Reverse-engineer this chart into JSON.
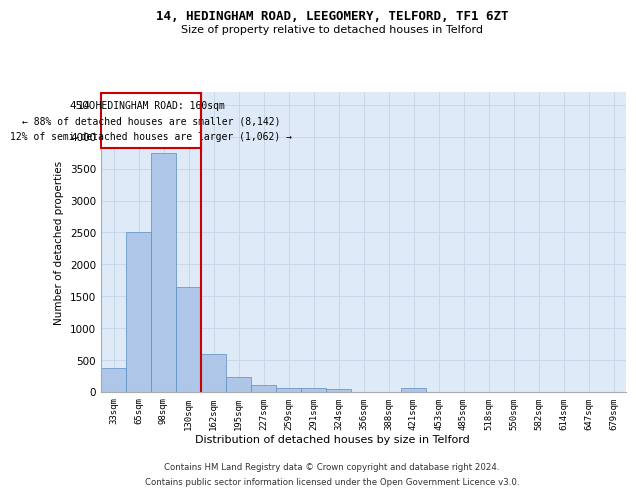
{
  "title_line1": "14, HEDINGHAM ROAD, LEEGOMERY, TELFORD, TF1 6ZT",
  "title_line2": "Size of property relative to detached houses in Telford",
  "xlabel": "Distribution of detached houses by size in Telford",
  "ylabel": "Number of detached properties",
  "footer_line1": "Contains HM Land Registry data © Crown copyright and database right 2024.",
  "footer_line2": "Contains public sector information licensed under the Open Government Licence v3.0.",
  "categories": [
    "33sqm",
    "65sqm",
    "98sqm",
    "130sqm",
    "162sqm",
    "195sqm",
    "227sqm",
    "259sqm",
    "291sqm",
    "324sqm",
    "356sqm",
    "388sqm",
    "421sqm",
    "453sqm",
    "485sqm",
    "518sqm",
    "550sqm",
    "582sqm",
    "614sqm",
    "647sqm",
    "679sqm"
  ],
  "values": [
    380,
    2500,
    3750,
    1650,
    600,
    230,
    105,
    60,
    55,
    45,
    0,
    0,
    55,
    0,
    0,
    0,
    0,
    0,
    0,
    0,
    0
  ],
  "bar_color": "#aec6e8",
  "bar_edge_color": "#5a8fc2",
  "highlight_bin_index": 4,
  "annotation_text_line1": "14 HEDINGHAM ROAD: 160sqm",
  "annotation_text_line2": "← 88% of detached houses are smaller (8,142)",
  "annotation_text_line3": "12% of semi-detached houses are larger (1,062) →",
  "annotation_box_color": "#cc0000",
  "ylim": [
    0,
    4700
  ],
  "yticks": [
    0,
    500,
    1000,
    1500,
    2000,
    2500,
    3000,
    3500,
    4000,
    4500
  ],
  "grid_color": "#c8d8e8",
  "bg_color": "#deeaf7"
}
